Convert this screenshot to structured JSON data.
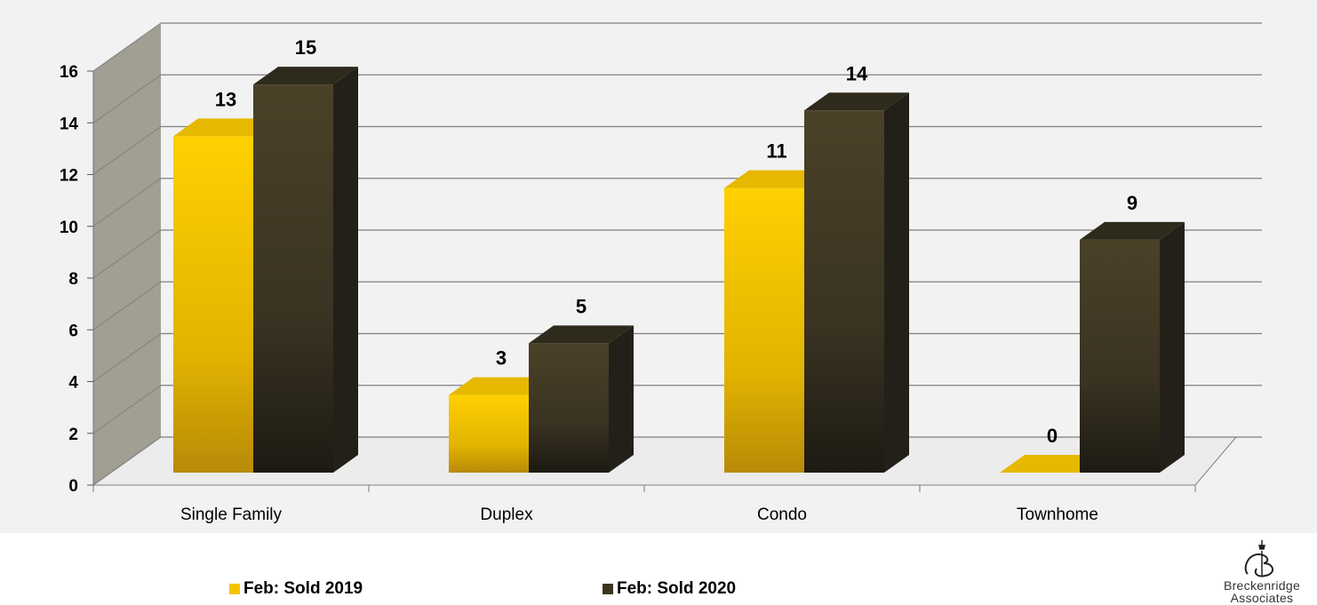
{
  "chart_data": {
    "type": "bar",
    "style": "3d-clustered-column",
    "categories": [
      "Single Family",
      "Duplex",
      "Condo",
      "Townhome"
    ],
    "series": [
      {
        "name": "Feb: Sold 2019",
        "values": [
          13,
          3,
          11,
          0
        ],
        "color": "#f5c400"
      },
      {
        "name": "Feb: Sold 2020",
        "values": [
          15,
          5,
          14,
          9
        ],
        "color": "#3b3522"
      }
    ],
    "ylim": [
      0,
      16
    ],
    "yticks": [
      0,
      2,
      4,
      6,
      8,
      10,
      12,
      14,
      16
    ],
    "title": "",
    "xlabel": "",
    "ylabel": "",
    "grid": true,
    "legend_position": "bottom",
    "data_labels": true,
    "colors": {
      "background": "#f2f2f2",
      "back_wall": "#a19f93",
      "gridline": "#7f7f7f"
    }
  },
  "logo": {
    "name": "Breckenridge",
    "name2": "Associates"
  }
}
